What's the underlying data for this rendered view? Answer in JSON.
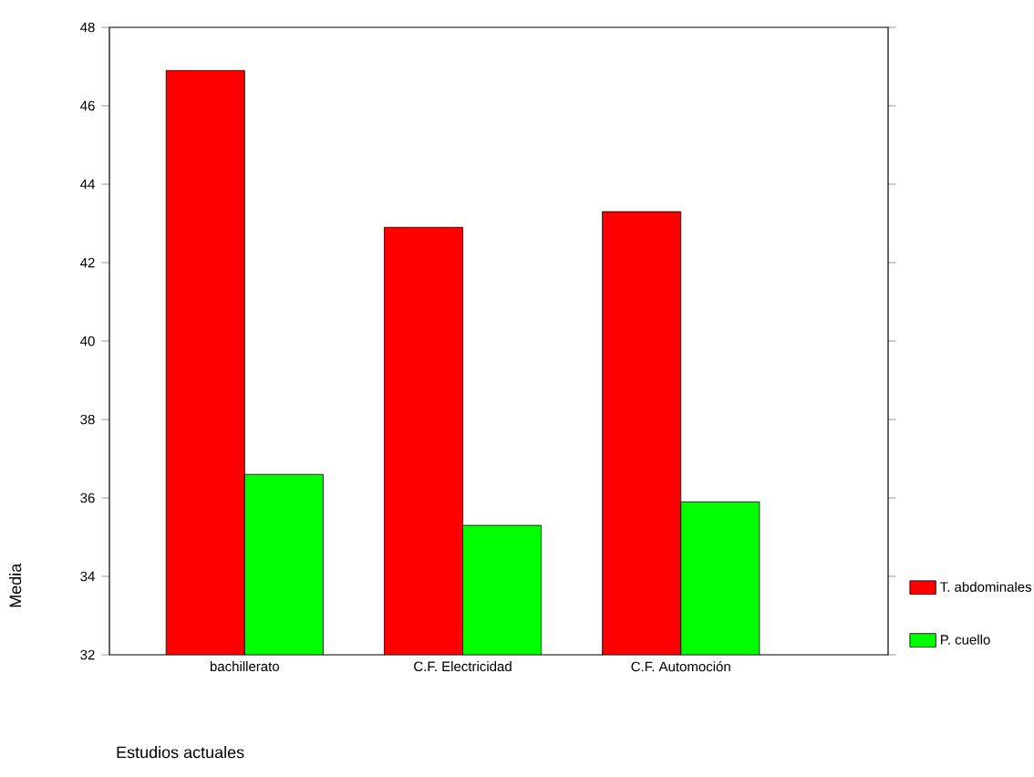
{
  "chart_data": {
    "type": "bar",
    "xlabel": "Estudios actuales",
    "ylabel": "Media",
    "categories": [
      "bachillerato",
      "C.F. Electricidad",
      "C.F. Automoción"
    ],
    "series": [
      {
        "name": "T. abdominales",
        "color": "#ff0000",
        "values": [
          46.9,
          42.9,
          43.3
        ]
      },
      {
        "name": "P. cuello",
        "color": "#00ff00",
        "values": [
          36.6,
          35.3,
          35.9
        ]
      }
    ],
    "ylim": [
      32,
      48
    ],
    "yticks": [
      32,
      34,
      36,
      38,
      40,
      42,
      44,
      46,
      48
    ],
    "legend": "right"
  }
}
